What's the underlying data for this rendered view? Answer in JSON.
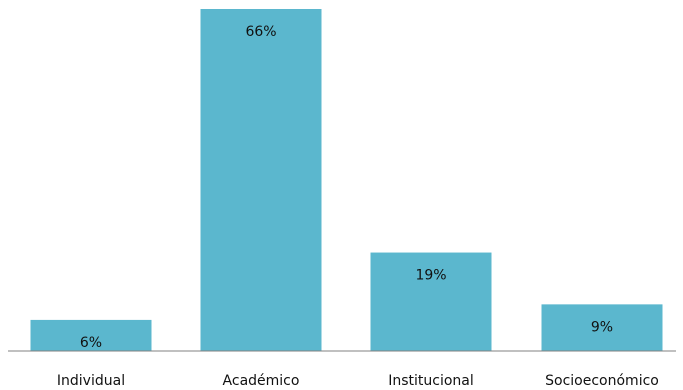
{
  "chart_data": {
    "type": "bar",
    "categories": [
      "Individual",
      "Académico",
      "Institucional",
      "Socioeconómico"
    ],
    "values": [
      6,
      66,
      19,
      9
    ],
    "value_labels": [
      "6%",
      "66%",
      "19%",
      "9%"
    ],
    "ylim": [
      0,
      66
    ],
    "bar_color": "#5BB7CE",
    "axis_color": "#808080",
    "grid": false,
    "legend": false
  }
}
